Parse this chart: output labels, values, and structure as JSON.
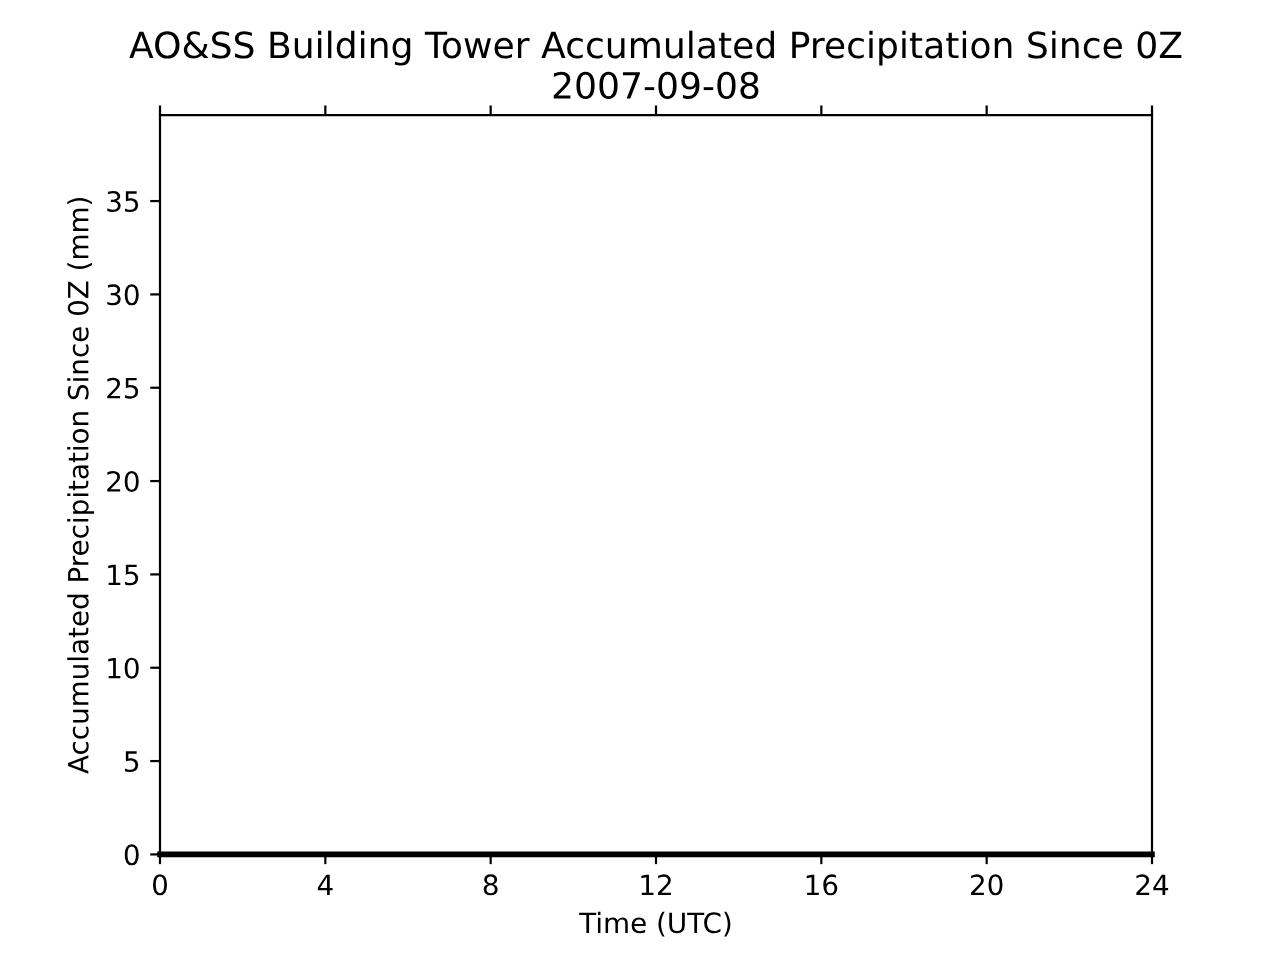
{
  "chart_data": {
    "type": "line",
    "title": "AO&SS Building Tower Accumulated Precipitation Since 0Z\n2007-09-08",
    "xlabel": "Time (UTC)",
    "ylabel": "Accumulated Precipitation Since 0Z (mm)",
    "x": [
      0,
      24
    ],
    "series": [
      {
        "color": "#000000",
        "values": [
          0,
          0
        ]
      }
    ],
    "xlim": [
      0,
      24
    ],
    "xticks": [
      0,
      4,
      8,
      12,
      16,
      20,
      24
    ],
    "ylim": [
      0,
      39.6
    ],
    "yticks": [
      0,
      5,
      10,
      15,
      20,
      25,
      30,
      35
    ],
    "grid": false,
    "legend": false,
    "marker": "none",
    "line_style": "solid"
  }
}
